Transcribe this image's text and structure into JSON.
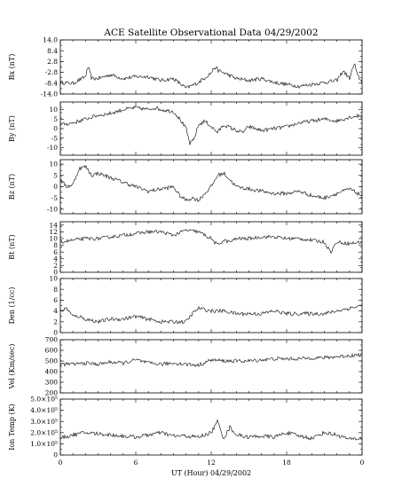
{
  "chart_data": {
    "type": "line",
    "title": "ACE Satellite Observational Data   04/29/2002",
    "xlabel": "UT (Hour)   04/29/2002",
    "x_ticks": [
      "0",
      "6",
      "12",
      "18",
      "0"
    ],
    "x_range": [
      0,
      24
    ],
    "grid": false,
    "panels": [
      {
        "ylabel": "Bx (nT)",
        "ylim": [
          -14,
          14
        ],
        "yticks": [
          "14.0",
          "8.4",
          "2.8",
          "-2.8",
          "-8.4",
          "-14.0"
        ],
        "ytick_values": [
          14,
          8.4,
          2.8,
          -2.8,
          -8.4,
          -14
        ],
        "series": [
          {
            "x": [
              0,
              1,
              2,
              2.2,
              2.5,
              3,
              4,
              5,
              6,
              7,
              8,
              9,
              10,
              11,
              12,
              12.3,
              12.6,
              13,
              14,
              15,
              16,
              17,
              18,
              19,
              20,
              21,
              22,
              22.5,
              23,
              23.4,
              23.6,
              24
            ],
            "y": [
              -8,
              -8.5,
              -5,
              0,
              -6,
              -6,
              -4,
              -6,
              -5,
              -5,
              -7,
              -6,
              -11,
              -8,
              -3,
              0,
              -2,
              -3,
              -6,
              -7,
              -6,
              -8,
              -9,
              -10,
              -9,
              -8,
              -7,
              -2,
              -6,
              2,
              -4,
              -8
            ]
          }
        ]
      },
      {
        "ylabel": "By (nT)",
        "ylim": [
          -14,
          14
        ],
        "yticks": [
          "10",
          "5",
          "0",
          "-5",
          "-10"
        ],
        "ytick_values": [
          10,
          5,
          0,
          -5,
          -10
        ],
        "series": [
          {
            "x": [
              0,
              1,
              2,
              3,
              4,
              5,
              6,
              7,
              7.5,
              8,
              9,
              9.5,
              10,
              10.3,
              10.6,
              11,
              11.5,
              12,
              12.5,
              13,
              14,
              14.5,
              15,
              16,
              17,
              18,
              19,
              20,
              21,
              22,
              23,
              24
            ],
            "y": [
              2,
              3,
              5,
              7,
              8,
              10,
              11,
              10,
              11,
              10,
              9,
              5,
              0,
              -8,
              -6,
              2,
              4,
              1,
              -2,
              2,
              -1,
              -2,
              1,
              -1,
              0,
              1,
              3,
              4,
              5,
              4,
              6,
              7
            ]
          }
        ]
      },
      {
        "ylabel": "Bz (nT)",
        "ylim": [
          -12,
          12
        ],
        "yticks": [
          "10",
          "5",
          "0",
          "-5",
          "-10"
        ],
        "ytick_values": [
          10,
          5,
          0,
          -5,
          -10
        ],
        "series": [
          {
            "x": [
              0,
              0.5,
              1,
              1.5,
              2,
              2.5,
              3,
              4,
              5,
              6,
              7,
              8,
              9,
              9.5,
              10,
              10.5,
              11,
              11.5,
              12,
              12.5,
              13,
              13.5,
              14,
              15,
              16,
              17,
              18,
              19,
              20,
              21,
              22,
              23,
              24
            ],
            "y": [
              3,
              0,
              1,
              8,
              9,
              5,
              6,
              4,
              2,
              0,
              -2,
              -1,
              0,
              -4,
              -6,
              -5,
              -6,
              -3,
              0,
              5,
              6,
              3,
              0,
              -1,
              -2,
              -3,
              -3,
              -2,
              -4,
              -5,
              -3,
              -1,
              -4
            ]
          }
        ]
      },
      {
        "ylabel": "Bt (nT)",
        "ylim": [
          0,
          15
        ],
        "yticks": [
          "14",
          "12",
          "10",
          "8",
          "6",
          "4",
          "2",
          "0"
        ],
        "ytick_values": [
          14,
          12,
          10,
          8,
          6,
          4,
          2,
          0
        ],
        "series": [
          {
            "x": [
              0,
              1,
              2,
              3,
              4,
              5,
              6,
              7,
              8,
              9,
              10,
              11,
              12,
              12.5,
              13,
              13.5,
              14,
              15,
              16,
              17,
              18,
              19,
              20,
              21,
              21.5,
              22,
              23,
              24
            ],
            "y": [
              9,
              9.5,
              10,
              10,
              10.5,
              11,
              11.5,
              12,
              12,
              11,
              12.5,
              12,
              10,
              8,
              9.5,
              9,
              10,
              10,
              10.5,
              10.5,
              10,
              10,
              9.5,
              9,
              6,
              9,
              8.5,
              9
            ]
          }
        ]
      },
      {
        "ylabel": "Den (1/cc)",
        "ylim": [
          0,
          10
        ],
        "yticks": [
          "10",
          "8",
          "6",
          "4",
          "2",
          "0"
        ],
        "ytick_values": [
          10,
          8,
          6,
          4,
          2,
          0
        ],
        "series": [
          {
            "x": [
              0,
              0.5,
              1,
              1.5,
              2,
              3,
              4,
              5,
              6,
              7,
              8,
              9,
              10,
              10.5,
              11,
              12,
              13,
              14,
              15,
              16,
              17,
              18,
              19,
              20,
              21,
              22,
              23,
              24
            ],
            "y": [
              4,
              4.5,
              3,
              3,
              2.5,
              2,
              2.5,
              2.5,
              3,
              2.5,
              2,
              2,
              2,
              3.5,
              4.5,
              4,
              4,
              3.5,
              3.5,
              3.5,
              4,
              3.5,
              3.5,
              3.5,
              3.5,
              4,
              4.5,
              5
            ]
          }
        ]
      },
      {
        "ylabel": "Vel (Km/sec)",
        "ylim": [
          200,
          700
        ],
        "yticks": [
          "700",
          "600",
          "500",
          "400",
          "300",
          "200"
        ],
        "ytick_values": [
          700,
          600,
          500,
          400,
          300,
          200
        ],
        "series": [
          {
            "x": [
              0,
              1,
              2,
              3,
              4,
              5,
              6,
              7,
              8,
              9,
              10,
              11,
              12,
              13,
              14,
              15,
              16,
              17,
              18,
              19,
              20,
              21,
              22,
              23,
              24
            ],
            "y": [
              470,
              470,
              480,
              470,
              490,
              480,
              510,
              480,
              470,
              480,
              470,
              460,
              510,
              500,
              500,
              500,
              510,
              520,
              520,
              520,
              530,
              530,
              540,
              550,
              560
            ]
          }
        ]
      },
      {
        "ylabel": "Ion Temp (K)",
        "ylim": [
          0,
          500000
        ],
        "yticks": [
          "5.0×10⁵",
          "4.0×10⁵",
          "3.0×10⁵",
          "2.0×10⁵",
          "1.0×10⁵",
          "0"
        ],
        "ytick_values": [
          500000,
          400000,
          300000,
          200000,
          100000,
          0
        ],
        "series": [
          {
            "x": [
              0,
              1,
              2,
              3,
              4,
              5,
              6,
              7,
              8,
              9,
              10,
              11,
              12,
              12.5,
              13,
              13.5,
              14,
              15,
              16,
              17,
              18,
              19,
              20,
              21,
              22,
              23,
              24
            ],
            "y": [
              150000,
              180000,
              200000,
              190000,
              180000,
              170000,
              160000,
              180000,
              200000,
              170000,
              170000,
              160000,
              200000,
              300000,
              150000,
              250000,
              180000,
              160000,
              170000,
              160000,
              200000,
              170000,
              150000,
              200000,
              180000,
              140000,
              150000
            ]
          }
        ]
      }
    ]
  }
}
